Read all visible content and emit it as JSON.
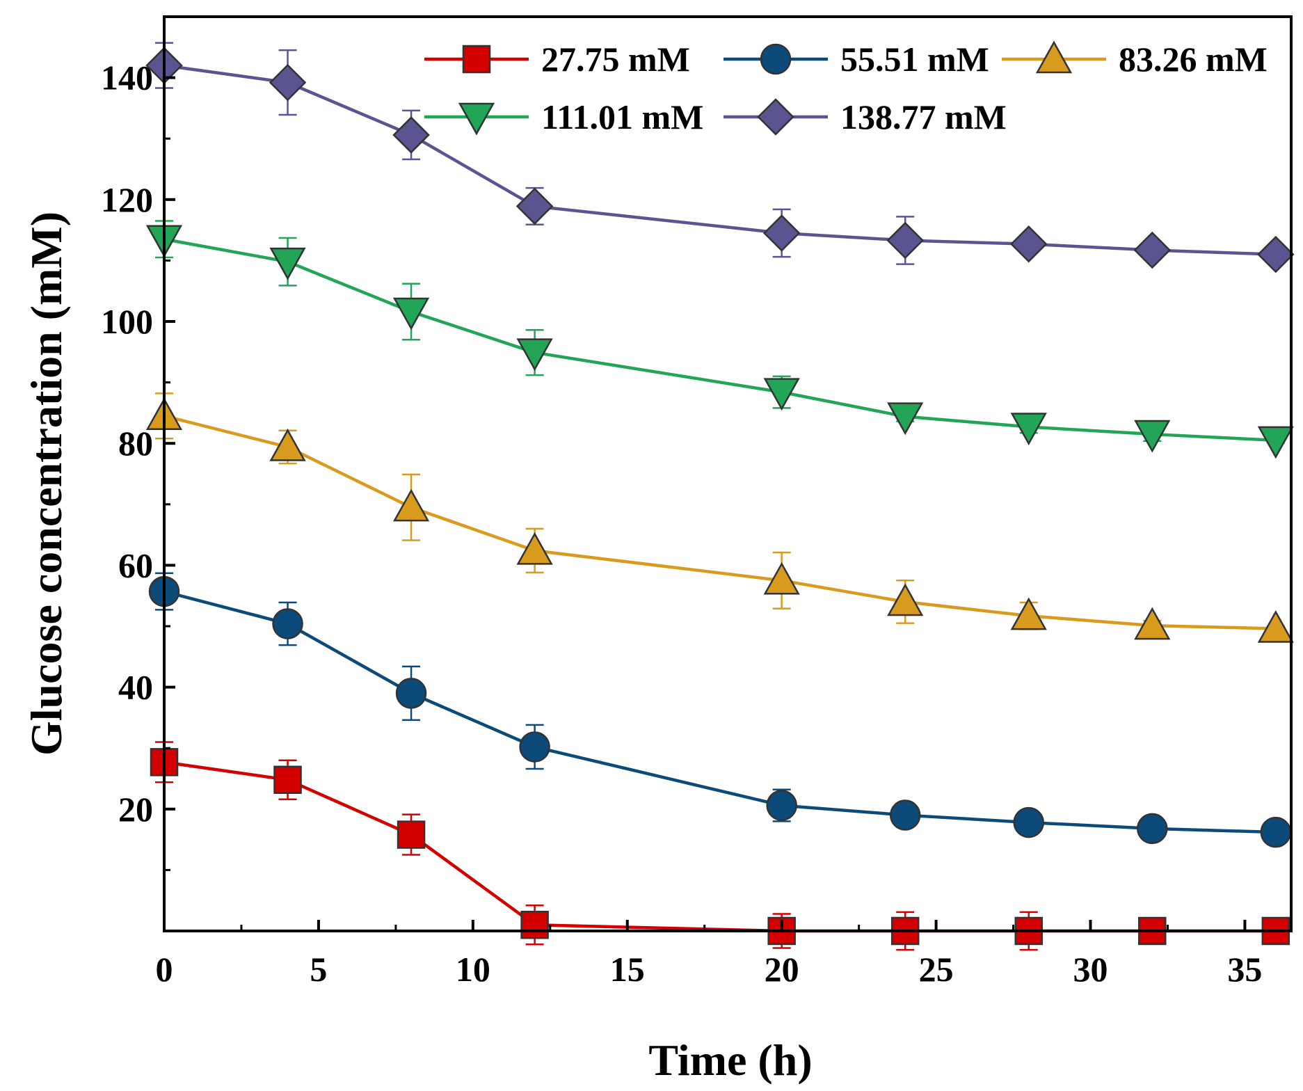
{
  "chart_data": {
    "type": "line",
    "title": "",
    "xlabel": "Time (h)",
    "ylabel": "Glucose concentration (mM)",
    "xlim": [
      0,
      36.5
    ],
    "ylim": [
      0,
      150
    ],
    "xticks": [
      0,
      5,
      10,
      15,
      20,
      25,
      30,
      35
    ],
    "xtick_labels": [
      "0",
      "5",
      "10",
      "15",
      "20",
      "25",
      "30",
      "35"
    ],
    "yticks": [
      20,
      40,
      60,
      80,
      100,
      120,
      140
    ],
    "ytick_labels": [
      "20",
      "40",
      "60",
      "80",
      "100",
      "120",
      "140"
    ],
    "grid": false,
    "legend_position": "top-right",
    "x": [
      0,
      4,
      8,
      12,
      20,
      24,
      28,
      32,
      36
    ],
    "series": [
      {
        "name": "27.75 mM",
        "color": "#d40000",
        "marker": "square",
        "values": [
          27.7,
          24.8,
          15.8,
          1.0,
          0.0,
          0.0,
          0.0,
          0.0,
          0.0
        ],
        "errors": [
          3.3,
          3.2,
          3.3,
          3.2,
          2.8,
          3.1,
          3.1,
          1.2,
          0.6
        ]
      },
      {
        "name": "55.51 mM",
        "color": "#0c4a7a",
        "marker": "circle",
        "values": [
          55.7,
          50.4,
          39.0,
          30.2,
          20.6,
          19.0,
          17.8,
          16.8,
          16.2
        ],
        "errors": [
          3.0,
          3.5,
          4.4,
          3.6,
          2.6,
          0.5,
          0.6,
          1.2,
          0.4
        ]
      },
      {
        "name": "83.26 mM",
        "color": "#d99b1e",
        "marker": "triangle-up",
        "values": [
          84.5,
          79.4,
          69.5,
          62.4,
          57.5,
          54.0,
          51.7,
          50.1,
          49.6
        ],
        "errors": [
          3.7,
          2.7,
          5.4,
          3.6,
          4.6,
          3.5,
          2.2,
          0.8,
          0.4
        ]
      },
      {
        "name": "111.01 mM",
        "color": "#22a556",
        "marker": "triangle-down",
        "values": [
          113.5,
          109.8,
          101.6,
          94.9,
          88.4,
          84.4,
          82.7,
          81.5,
          80.5
        ],
        "errors": [
          3.0,
          3.9,
          4.6,
          3.7,
          2.6,
          0.8,
          1.0,
          1.1,
          0.4
        ]
      },
      {
        "name": "138.77 mM",
        "color": "#5a5590",
        "marker": "diamond",
        "values": [
          142.0,
          139.2,
          130.6,
          118.9,
          114.5,
          113.3,
          112.7,
          111.7,
          111.0
        ],
        "errors": [
          3.7,
          5.3,
          4.0,
          3.0,
          3.9,
          3.9,
          1.2,
          1.5,
          0.3
        ]
      }
    ]
  }
}
